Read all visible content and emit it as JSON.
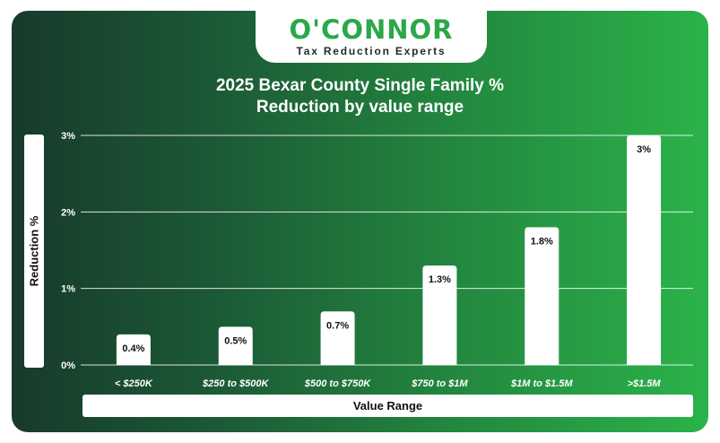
{
  "logo": {
    "name": "O'CONNOR",
    "tagline": "Tax Reduction Experts"
  },
  "colors": {
    "bar": "#ffffff",
    "text": "#ffffff",
    "accent": "#2aa84a"
  },
  "chart_data": {
    "type": "bar",
    "title_line1": "2025 Bexar County Single Family %",
    "title_line2": "Reduction by value range",
    "xlabel": "Value Range",
    "ylabel": "Reduction %",
    "categories": [
      "< $250K",
      "$250 to $500K",
      "$500 to $750K",
      "$750 to $1M",
      "$1M to $1.5M",
      ">$1.5M"
    ],
    "values": [
      0.4,
      0.5,
      0.7,
      1.3,
      1.8,
      3
    ],
    "data_labels": [
      "0.4%",
      "0.5%",
      "0.7%",
      "1.3%",
      "1.8%",
      "3%"
    ],
    "yticks": [
      0,
      1,
      2,
      3
    ],
    "ytick_labels": [
      "0%",
      "1%",
      "2%",
      "3%"
    ],
    "ylim": [
      0,
      3
    ],
    "grid": true,
    "legend": "none"
  }
}
